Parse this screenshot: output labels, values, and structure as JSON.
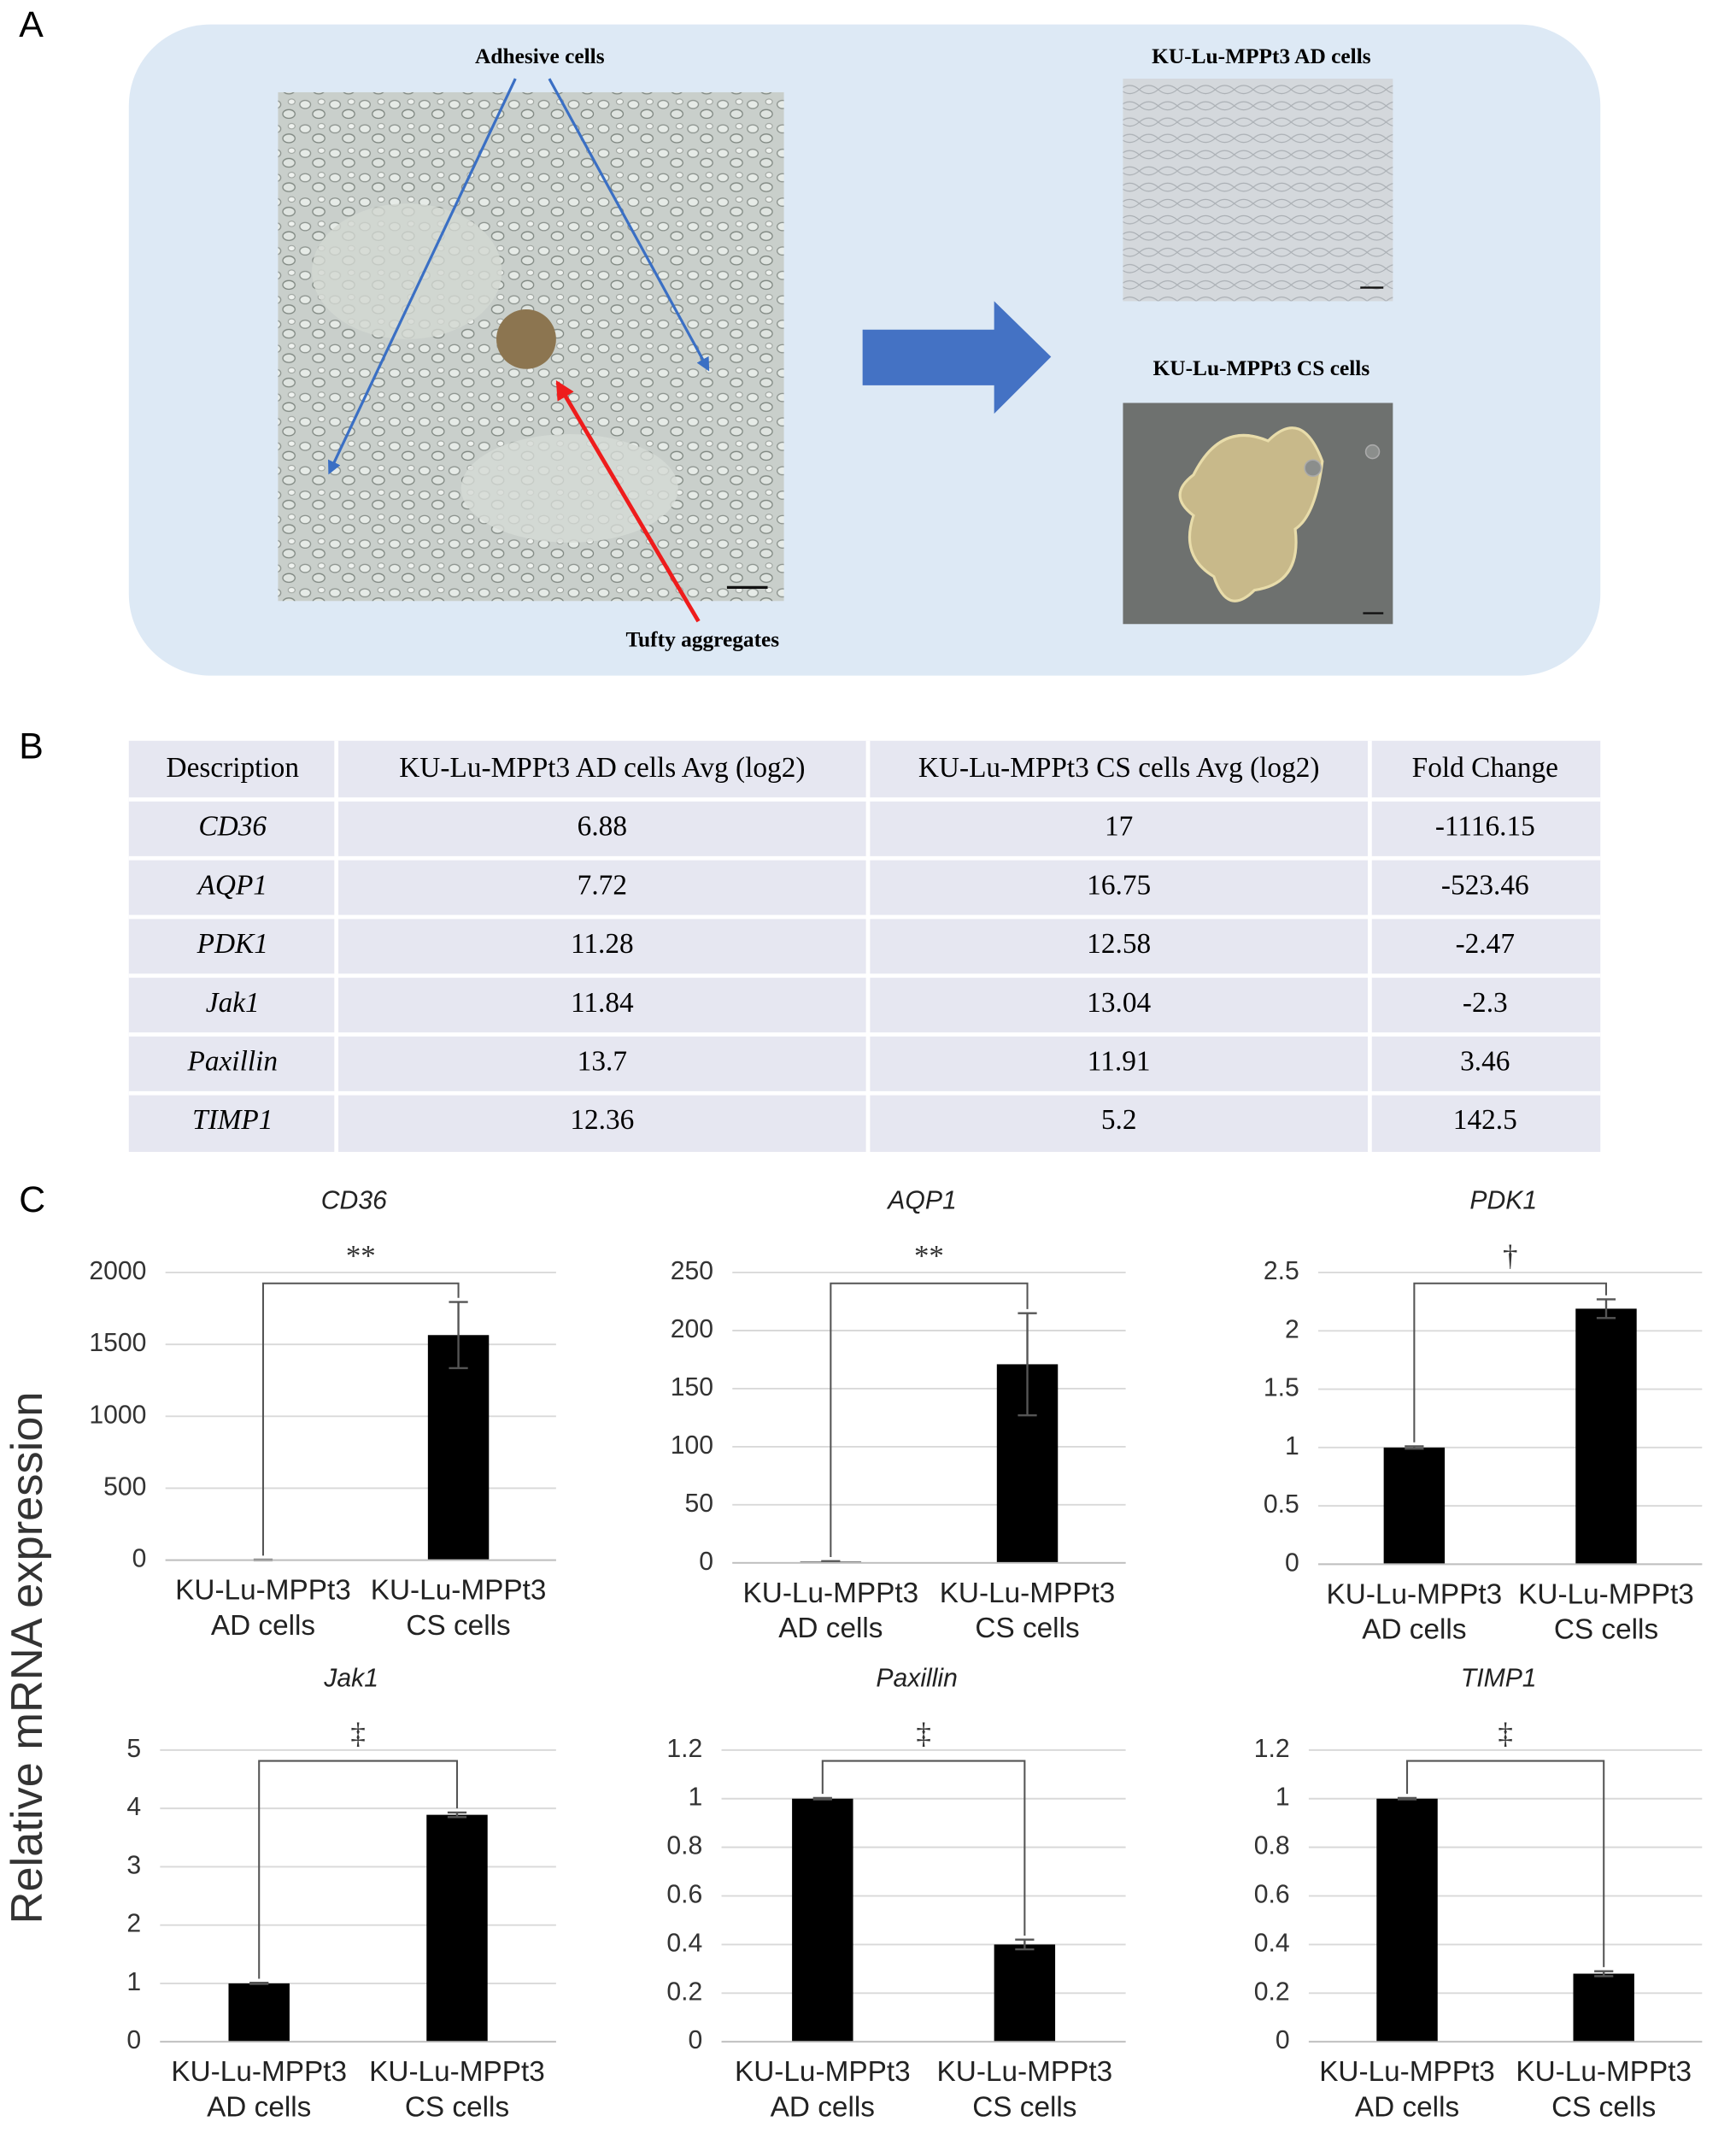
{
  "panel_labels": [
    "A",
    "B",
    "C"
  ],
  "panel_a": {
    "adhesive_label": "Adhesive cells",
    "aggregates_label": "Tufty aggregates",
    "ad_label": "KU-Lu-MPPt3 AD cells",
    "cs_label": "KU-Lu-MPPt3 CS cells"
  },
  "table": {
    "header": [
      "Description",
      "KU-Lu-MPPt3 AD cells  Avg (log2)",
      "KU-Lu-MPPt3 CS cells Avg (log2)",
      "Fold Change"
    ],
    "rows": [
      [
        "CD36",
        6.88,
        17,
        -1116.15
      ],
      [
        "AQP1",
        7.72,
        16.75,
        -523.46
      ],
      [
        "PDK1",
        11.28,
        12.58,
        -2.47
      ],
      [
        "Jak1",
        11.84,
        13.04,
        -2.3
      ],
      [
        "Paxillin",
        13.7,
        11.91,
        3.46
      ],
      [
        "TIMP1",
        12.36,
        5.2,
        142.5
      ]
    ]
  },
  "y_label": "Relative mRNA expression",
  "chart_data": [
    {
      "type": "bar",
      "title": "CD36",
      "annotation": "**",
      "categories": [
        "KU-Lu-MPPt3 AD cells",
        "KU-Lu-MPPt3 CS cells"
      ],
      "values": [
        1,
        1565
      ],
      "errors": [
        2,
        230
      ],
      "color": "#000000",
      "ylim": [
        0,
        2000
      ],
      "yticks": [
        0,
        500,
        1000,
        1500,
        2000
      ],
      "grid": true
    },
    {
      "type": "bar",
      "title": "AQP1",
      "annotation": "**",
      "categories": [
        "KU-Lu-MPPt3 AD cells",
        "KU-Lu-MPPt3 CS cells"
      ],
      "values": [
        1,
        171
      ],
      "errors": [
        0.5,
        44
      ],
      "color": "#000000",
      "ylim": [
        0,
        250
      ],
      "yticks": [
        0,
        50,
        100,
        150,
        200,
        250
      ],
      "grid": true
    },
    {
      "type": "bar",
      "title": "PDK1",
      "annotation": "†",
      "categories": [
        "KU-Lu-MPPt3 AD cells",
        "KU-Lu-MPPt3 CS cells"
      ],
      "values": [
        1,
        2.19
      ],
      "errors": [
        0.01,
        0.08
      ],
      "color": "#000000",
      "ylim": [
        0,
        2.5
      ],
      "yticks": [
        0,
        0.5,
        1,
        1.5,
        2,
        2.5
      ],
      "grid": true
    },
    {
      "type": "bar",
      "title": "Jak1",
      "annotation": "‡",
      "categories": [
        "KU-Lu-MPPt3 AD cells",
        "KU-Lu-MPPt3 CS cells"
      ],
      "values": [
        1,
        3.89
      ],
      "errors": [
        0.01,
        0.04
      ],
      "color": "#000000",
      "ylim": [
        0,
        5
      ],
      "yticks": [
        0,
        1,
        2,
        3,
        4,
        5
      ],
      "grid": true
    },
    {
      "type": "bar",
      "title": "Paxillin",
      "annotation": "‡",
      "categories": [
        "KU-Lu-MPPt3 AD cells",
        "KU-Lu-MPPt3 CS cells"
      ],
      "values": [
        1,
        0.4
      ],
      "errors": [
        0.003,
        0.02
      ],
      "color": "#000000",
      "ylim": [
        0,
        1.2
      ],
      "yticks": [
        0,
        0.2,
        0.4,
        0.6,
        0.8,
        1,
        1.2
      ],
      "grid": true
    },
    {
      "type": "bar",
      "title": "TIMP1",
      "annotation": "‡",
      "categories": [
        "KU-Lu-MPPt3 AD cells",
        "KU-Lu-MPPt3 CS cells"
      ],
      "values": [
        1,
        0.28
      ],
      "errors": [
        0.003,
        0.01
      ],
      "color": "#000000",
      "ylim": [
        0,
        1.2
      ],
      "yticks": [
        0,
        0.2,
        0.4,
        0.6,
        0.8,
        1,
        1.2
      ],
      "grid": true
    }
  ]
}
